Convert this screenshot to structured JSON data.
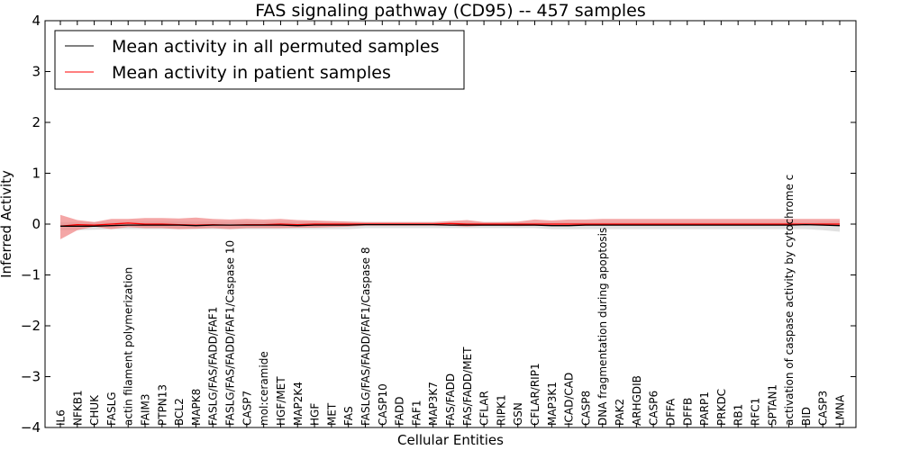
{
  "chart_data": {
    "type": "line",
    "title": "FAS signaling pathway (CD95) -- 457 samples",
    "xlabel": "Cellular Entities",
    "ylabel": "Inferred Activity",
    "ylim": [
      -4,
      4
    ],
    "yticks": [
      {
        "value": 4,
        "label": "4"
      },
      {
        "value": 3,
        "label": "3"
      },
      {
        "value": 2,
        "label": "2"
      },
      {
        "value": 1,
        "label": "1"
      },
      {
        "value": 0,
        "label": "0"
      },
      {
        "value": -1,
        "label": "−1"
      },
      {
        "value": -2,
        "label": "−2"
      },
      {
        "value": -3,
        "label": "−3"
      },
      {
        "value": -4,
        "label": "−4"
      }
    ],
    "grid": false,
    "legend_position": "top-left",
    "categories": [
      "IL6",
      "NFKB1",
      "CHUK",
      "FASLG",
      "actin filament polymerization",
      "FAIM3",
      "PTPN13",
      "BCL2",
      "MAPK8",
      "FASLG/FAS/FADD/FAF1",
      "FASLG/FAS/FADD/FAF1/Caspase 10",
      "CASP7",
      "mol:ceramide",
      "HGF/MET",
      "MAP2K4",
      "HGF",
      "MET",
      "FAS",
      "FASLG/FAS/FADD/FAF1/Caspase 8",
      "CASP10",
      "FADD",
      "FAF1",
      "MAP3K7",
      "FAS/FADD",
      "FAS/FADD/MET",
      "CFLAR",
      "RIPK1",
      "GSN",
      "CFLAR/RIP1",
      "MAP3K1",
      "ICAD/CAD",
      "CASP8",
      "DNA fragmentation during apoptosis",
      "PAK2",
      "ARHGDIB",
      "CASP6",
      "DFFA",
      "DFFB",
      "PARP1",
      "PRKDC",
      "RB1",
      "RFC1",
      "SPTAN1",
      "activation of caspase activity by cytochrome c",
      "BID",
      "CASP3",
      "LMNA"
    ],
    "series": [
      {
        "name": "Mean activity in all permuted samples",
        "color": "#000000",
        "band_color": "#c8c8c8",
        "values": [
          -0.04,
          -0.04,
          -0.04,
          -0.03,
          -0.02,
          -0.02,
          -0.02,
          -0.02,
          -0.03,
          -0.02,
          -0.02,
          -0.02,
          -0.02,
          -0.02,
          -0.03,
          -0.02,
          -0.02,
          -0.02,
          -0.01,
          -0.01,
          -0.01,
          -0.01,
          -0.01,
          -0.02,
          -0.02,
          -0.02,
          -0.02,
          -0.02,
          -0.02,
          -0.03,
          -0.03,
          -0.02,
          -0.02,
          -0.02,
          -0.02,
          -0.02,
          -0.02,
          -0.02,
          -0.02,
          -0.02,
          -0.02,
          -0.02,
          -0.02,
          -0.02,
          -0.01,
          -0.02,
          -0.03
        ],
        "band_lower": [
          -0.12,
          -0.12,
          -0.11,
          -0.1,
          -0.1,
          -0.1,
          -0.1,
          -0.1,
          -0.1,
          -0.1,
          -0.1,
          -0.1,
          -0.1,
          -0.1,
          -0.1,
          -0.1,
          -0.1,
          -0.1,
          -0.08,
          -0.08,
          -0.08,
          -0.08,
          -0.08,
          -0.08,
          -0.08,
          -0.08,
          -0.08,
          -0.08,
          -0.08,
          -0.1,
          -0.1,
          -0.1,
          -0.1,
          -0.1,
          -0.1,
          -0.1,
          -0.1,
          -0.1,
          -0.1,
          -0.1,
          -0.1,
          -0.1,
          -0.1,
          -0.1,
          -0.1,
          -0.12,
          -0.15
        ],
        "band_upper": [
          0.04,
          0.04,
          0.04,
          0.04,
          0.05,
          0.05,
          0.05,
          0.05,
          0.05,
          0.05,
          0.05,
          0.05,
          0.05,
          0.05,
          0.05,
          0.05,
          0.05,
          0.05,
          0.04,
          0.04,
          0.04,
          0.04,
          0.04,
          0.04,
          0.04,
          0.04,
          0.04,
          0.04,
          0.04,
          0.04,
          0.04,
          0.04,
          0.04,
          0.04,
          0.04,
          0.04,
          0.04,
          0.04,
          0.04,
          0.04,
          0.04,
          0.04,
          0.04,
          0.04,
          0.04,
          0.05,
          0.06
        ]
      },
      {
        "name": "Mean activity in patient samples",
        "color": "#ff0000",
        "band_color": "#f08080",
        "values": [
          -0.04,
          -0.01,
          -0.02,
          0.0,
          0.02,
          0.0,
          0.0,
          -0.01,
          -0.02,
          -0.01,
          -0.02,
          -0.01,
          -0.01,
          0.0,
          -0.01,
          0.0,
          0.0,
          0.0,
          0.0,
          0.0,
          0.0,
          0.0,
          0.0,
          0.01,
          0.0,
          0.0,
          0.0,
          0.0,
          0.0,
          0.0,
          0.0,
          0.0,
          0.0,
          0.0,
          0.0,
          0.0,
          0.0,
          0.0,
          0.0,
          0.0,
          0.0,
          0.0,
          0.0,
          0.0,
          0.0,
          0.0,
          0.0
        ],
        "band_lower": [
          -0.3,
          -0.12,
          -0.05,
          -0.1,
          -0.06,
          -0.08,
          -0.08,
          -0.1,
          -0.09,
          -0.08,
          -0.1,
          -0.08,
          -0.08,
          -0.08,
          -0.07,
          -0.07,
          -0.06,
          -0.05,
          -0.03,
          -0.03,
          -0.03,
          -0.03,
          -0.03,
          -0.03,
          -0.05,
          -0.03,
          -0.03,
          -0.04,
          -0.03,
          -0.03,
          -0.03,
          -0.03,
          -0.02,
          -0.02,
          -0.02,
          -0.02,
          -0.02,
          -0.02,
          -0.02,
          -0.02,
          -0.02,
          -0.02,
          -0.02,
          -0.02,
          -0.02,
          -0.02,
          -0.02
        ],
        "band_upper": [
          0.18,
          0.08,
          0.04,
          0.1,
          0.1,
          0.12,
          0.12,
          0.11,
          0.13,
          0.1,
          0.09,
          0.1,
          0.09,
          0.1,
          0.08,
          0.07,
          0.06,
          0.05,
          0.04,
          0.04,
          0.04,
          0.04,
          0.04,
          0.06,
          0.08,
          0.04,
          0.04,
          0.05,
          0.09,
          0.07,
          0.09,
          0.09,
          0.1,
          0.1,
          0.1,
          0.1,
          0.1,
          0.1,
          0.1,
          0.1,
          0.1,
          0.1,
          0.1,
          0.1,
          0.1,
          0.1,
          0.1
        ]
      }
    ]
  }
}
